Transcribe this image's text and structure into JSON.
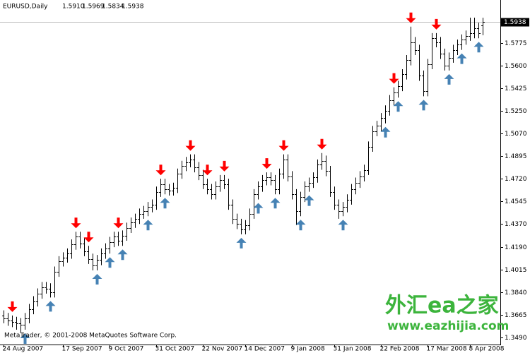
{
  "chart_data": {
    "type": "ohlc",
    "header": {
      "symbol": "EURUSD,Daily",
      "values": [
        "1.5910",
        "1.5969",
        "1.5834",
        "1.5938"
      ]
    },
    "footer": "MetaTrader, © 2001-2008 MetaQuotes Software Corp.",
    "watermark": {
      "title": "外汇ea之家",
      "url": "www.eazhijia.com"
    },
    "categories": [
      "24 Aug 2007",
      null,
      null,
      null,
      null,
      null,
      null,
      null,
      null,
      null,
      null,
      null,
      null,
      null,
      "17 Sep 2007",
      null,
      null,
      null,
      null,
      null,
      null,
      null,
      null,
      null,
      null,
      "9 Oct 2007",
      null,
      null,
      null,
      null,
      null,
      null,
      null,
      null,
      null,
      null,
      "31 Oct 2007",
      null,
      null,
      null,
      null,
      null,
      null,
      null,
      null,
      null,
      null,
      "22 Nov 2007",
      null,
      null,
      null,
      null,
      null,
      null,
      null,
      null,
      null,
      "14 Dec 2007",
      null,
      null,
      null,
      null,
      null,
      null,
      null,
      null,
      null,
      null,
      "9 Jan 2008",
      null,
      null,
      null,
      null,
      null,
      null,
      null,
      null,
      null,
      "31 Jan 2008",
      null,
      null,
      null,
      null,
      null,
      null,
      null,
      null,
      null,
      null,
      "22 Feb 2008",
      null,
      null,
      null,
      null,
      null,
      null,
      null,
      null,
      null,
      null,
      "17 Mar 2008",
      null,
      null,
      null,
      null,
      null,
      null,
      null,
      null,
      null,
      "8 Apr 2008",
      null,
      null,
      null
    ],
    "open": [
      1.366,
      1.364,
      1.362,
      1.361,
      1.36,
      1.359,
      1.364,
      1.371,
      1.377,
      1.383,
      1.388,
      1.387,
      1.384,
      1.4,
      1.408,
      1.411,
      1.414,
      1.421,
      1.427,
      1.422,
      1.416,
      1.41,
      1.405,
      1.409,
      1.414,
      1.418,
      1.423,
      1.427,
      1.424,
      1.428,
      1.434,
      1.438,
      1.441,
      1.445,
      1.447,
      1.45,
      1.452,
      1.462,
      1.468,
      1.464,
      1.463,
      1.465,
      1.476,
      1.482,
      1.485,
      1.487,
      1.481,
      1.475,
      1.468,
      1.464,
      1.46,
      1.466,
      1.471,
      1.468,
      1.452,
      1.441,
      1.437,
      1.433,
      1.436,
      1.445,
      1.46,
      1.466,
      1.471,
      1.473,
      1.471,
      1.464,
      1.476,
      1.487,
      1.474,
      1.46,
      1.447,
      1.458,
      1.466,
      1.469,
      1.473,
      1.483,
      1.486,
      1.478,
      1.462,
      1.452,
      1.447,
      1.45,
      1.456,
      1.464,
      1.469,
      1.474,
      1.479,
      1.497,
      1.509,
      1.513,
      1.519,
      1.525,
      1.533,
      1.539,
      1.544,
      1.553,
      1.564,
      1.578,
      1.572,
      1.552,
      1.54,
      1.561,
      1.581,
      1.578,
      1.569,
      1.56,
      1.566,
      1.572,
      1.576,
      1.58,
      1.583,
      1.585,
      1.589,
      1.591
    ],
    "high": [
      1.37,
      1.368,
      1.366,
      1.365,
      1.364,
      1.368,
      1.375,
      1.381,
      1.387,
      1.392,
      1.392,
      1.391,
      1.404,
      1.412,
      1.415,
      1.418,
      1.425,
      1.431,
      1.431,
      1.426,
      1.42,
      1.414,
      1.413,
      1.418,
      1.422,
      1.427,
      1.431,
      1.431,
      1.432,
      1.438,
      1.442,
      1.445,
      1.449,
      1.451,
      1.454,
      1.456,
      1.466,
      1.472,
      1.472,
      1.468,
      1.469,
      1.48,
      1.486,
      1.489,
      1.491,
      1.491,
      1.485,
      1.479,
      1.472,
      1.468,
      1.47,
      1.475,
      1.475,
      1.472,
      1.456,
      1.445,
      1.441,
      1.44,
      1.449,
      1.464,
      1.47,
      1.475,
      1.477,
      1.477,
      1.475,
      1.48,
      1.491,
      1.491,
      1.478,
      1.464,
      1.462,
      1.47,
      1.473,
      1.477,
      1.487,
      1.492,
      1.49,
      1.482,
      1.466,
      1.456,
      1.454,
      1.46,
      1.468,
      1.473,
      1.478,
      1.483,
      1.501,
      1.513,
      1.517,
      1.523,
      1.529,
      1.537,
      1.543,
      1.548,
      1.557,
      1.568,
      1.59,
      1.582,
      1.576,
      1.556,
      1.565,
      1.585,
      1.585,
      1.582,
      1.573,
      1.57,
      1.576,
      1.58,
      1.584,
      1.587,
      1.597,
      1.597,
      1.593,
      1.5969
    ],
    "low": [
      1.36,
      1.358,
      1.357,
      1.355,
      1.353,
      1.355,
      1.36,
      1.367,
      1.373,
      1.379,
      1.383,
      1.38,
      1.38,
      1.396,
      1.404,
      1.407,
      1.41,
      1.417,
      1.418,
      1.412,
      1.406,
      1.401,
      1.401,
      1.405,
      1.41,
      1.414,
      1.419,
      1.42,
      1.42,
      1.424,
      1.43,
      1.434,
      1.437,
      1.441,
      1.443,
      1.446,
      1.448,
      1.458,
      1.46,
      1.459,
      1.459,
      1.461,
      1.472,
      1.478,
      1.481,
      1.477,
      1.471,
      1.464,
      1.46,
      1.456,
      1.456,
      1.462,
      1.464,
      1.448,
      1.437,
      1.433,
      1.429,
      1.429,
      1.432,
      1.441,
      1.456,
      1.462,
      1.467,
      1.467,
      1.46,
      1.46,
      1.472,
      1.47,
      1.456,
      1.436,
      1.443,
      1.454,
      1.462,
      1.465,
      1.469,
      1.479,
      1.474,
      1.458,
      1.448,
      1.441,
      1.443,
      1.446,
      1.452,
      1.46,
      1.465,
      1.47,
      1.475,
      1.493,
      1.505,
      1.509,
      1.515,
      1.521,
      1.529,
      1.535,
      1.54,
      1.549,
      1.56,
      1.568,
      1.548,
      1.536,
      1.536,
      1.557,
      1.574,
      1.565,
      1.556,
      1.556,
      1.562,
      1.568,
      1.572,
      1.576,
      1.579,
      1.581,
      1.581,
      1.5834
    ],
    "close": [
      1.364,
      1.362,
      1.361,
      1.36,
      1.359,
      1.364,
      1.371,
      1.377,
      1.383,
      1.388,
      1.387,
      1.384,
      1.4,
      1.408,
      1.411,
      1.414,
      1.421,
      1.427,
      1.422,
      1.416,
      1.41,
      1.405,
      1.409,
      1.414,
      1.418,
      1.423,
      1.427,
      1.424,
      1.428,
      1.434,
      1.438,
      1.441,
      1.445,
      1.447,
      1.45,
      1.452,
      1.462,
      1.468,
      1.464,
      1.463,
      1.465,
      1.476,
      1.482,
      1.485,
      1.487,
      1.481,
      1.475,
      1.468,
      1.464,
      1.46,
      1.466,
      1.471,
      1.468,
      1.452,
      1.441,
      1.437,
      1.433,
      1.436,
      1.445,
      1.46,
      1.466,
      1.471,
      1.473,
      1.471,
      1.464,
      1.476,
      1.487,
      1.474,
      1.46,
      1.447,
      1.458,
      1.466,
      1.469,
      1.473,
      1.483,
      1.486,
      1.478,
      1.462,
      1.452,
      1.447,
      1.45,
      1.456,
      1.464,
      1.469,
      1.474,
      1.479,
      1.497,
      1.509,
      1.513,
      1.519,
      1.525,
      1.533,
      1.539,
      1.544,
      1.553,
      1.564,
      1.578,
      1.572,
      1.552,
      1.54,
      1.561,
      1.581,
      1.578,
      1.569,
      1.56,
      1.566,
      1.572,
      1.576,
      1.58,
      1.583,
      1.585,
      1.589,
      1.585,
      1.5938
    ],
    "down_arrows": [
      2,
      17,
      20,
      27,
      37,
      44,
      48,
      52,
      62,
      66,
      75,
      92,
      96,
      102
    ],
    "up_arrows": [
      5,
      11,
      22,
      25,
      28,
      34,
      38,
      56,
      60,
      64,
      70,
      72,
      80,
      90,
      93,
      99,
      105,
      108,
      112
    ],
    "bar_color": "#000000",
    "down_color": "#ff0000",
    "up_color": "#4682b4",
    "ylim": [
      1.3435,
      1.6085
    ],
    "yticks": [
      {
        "value": 1.349,
        "label": "1.3490"
      },
      {
        "value": 1.3665,
        "label": "1.3665"
      },
      {
        "value": 1.384,
        "label": "1.3840"
      },
      {
        "value": 1.4015,
        "label": "1.4015"
      },
      {
        "value": 1.419,
        "label": "1.4190"
      },
      {
        "value": 1.437,
        "label": "1.4370"
      },
      {
        "value": 1.4545,
        "label": "1.4545"
      },
      {
        "value": 1.472,
        "label": "1.4720"
      },
      {
        "value": 1.4895,
        "label": "1.4895"
      },
      {
        "value": 1.507,
        "label": "1.5070"
      },
      {
        "value": 1.525,
        "label": "1.5250"
      },
      {
        "value": 1.5425,
        "label": "1.5425"
      },
      {
        "value": 1.56,
        "label": "1.5600"
      },
      {
        "value": 1.5775,
        "label": "1.5775"
      }
    ],
    "price_line": {
      "value": 1.5938,
      "label": "1.5938"
    }
  }
}
